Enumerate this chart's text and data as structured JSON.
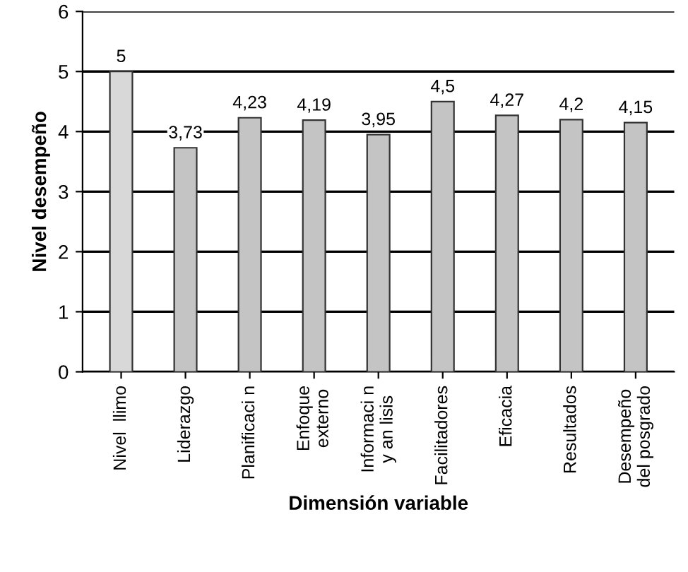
{
  "chart_data": {
    "type": "bar",
    "xlabel": "Dimensión variable",
    "ylabel": "Nivel desempeño",
    "categories": [
      "Nivel  llimo",
      "Liderazgo",
      "Planificaci n",
      "Enfoque\nexterno",
      "Informaci n\ny an lisis",
      "Facilitadores",
      "Eficacia",
      "Resultados",
      "Desempeño\ndel posgrado"
    ],
    "values": [
      5,
      3.73,
      4.23,
      4.19,
      3.95,
      4.5,
      4.27,
      4.2,
      4.15
    ],
    "value_labels": [
      "5",
      "3,73",
      "4,23",
      "4,19",
      "3,95",
      "4,5",
      "4,27",
      "4,2",
      "4,15"
    ],
    "colors": [
      "#d8d8d8",
      "#c4c4c4",
      "#c4c4c4",
      "#c4c4c4",
      "#c4c4c4",
      "#c4c4c4",
      "#c4c4c4",
      "#c4c4c4",
      "#c4c4c4"
    ],
    "ylim": [
      0,
      6
    ],
    "yticks": [
      0,
      1,
      2,
      3,
      4,
      5,
      6
    ],
    "grid": "y"
  }
}
